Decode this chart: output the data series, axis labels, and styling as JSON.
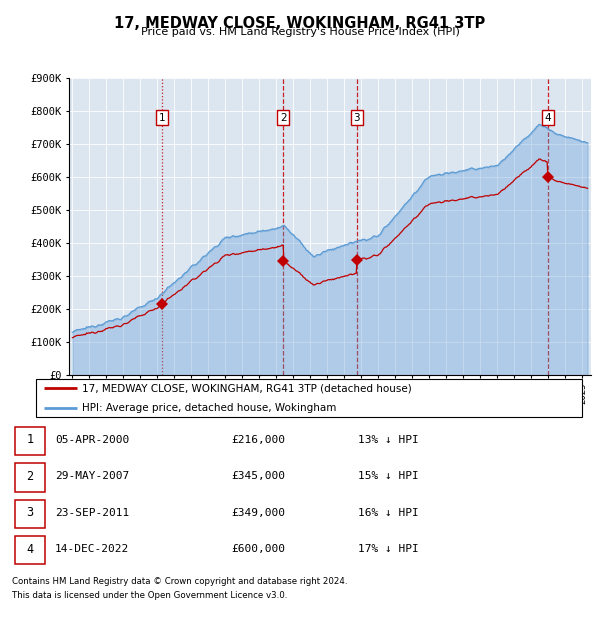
{
  "title": "17, MEDWAY CLOSE, WOKINGHAM, RG41 3TP",
  "subtitle": "Price paid vs. HM Land Registry's House Price Index (HPI)",
  "sales": [
    {
      "date": 2000.27,
      "price": 216000,
      "label": "1",
      "hpi_pct": "13% ↓ HPI",
      "date_str": "05-APR-2000",
      "price_str": "£216,000"
    },
    {
      "date": 2007.41,
      "price": 345000,
      "label": "2",
      "hpi_pct": "15% ↓ HPI",
      "date_str": "29-MAY-2007",
      "price_str": "£345,000"
    },
    {
      "date": 2011.73,
      "price": 349000,
      "label": "3",
      "hpi_pct": "16% ↓ HPI",
      "date_str": "23-SEP-2011",
      "price_str": "£349,000"
    },
    {
      "date": 2022.95,
      "price": 600000,
      "label": "4",
      "hpi_pct": "17% ↓ HPI",
      "date_str": "14-DEC-2022",
      "price_str": "£600,000"
    }
  ],
  "ylim": [
    0,
    900000
  ],
  "xlim": [
    1994.8,
    2025.5
  ],
  "yticks": [
    0,
    100000,
    200000,
    300000,
    400000,
    500000,
    600000,
    700000,
    800000,
    900000
  ],
  "ytick_labels": [
    "£0",
    "£100K",
    "£200K",
    "£300K",
    "£400K",
    "£500K",
    "£600K",
    "£700K",
    "£800K",
    "£900K"
  ],
  "hpi_color": "#5b9bd5",
  "price_color": "#c00000",
  "bg_color": "#dce6f1",
  "legend_label_red": "17, MEDWAY CLOSE, WOKINGHAM, RG41 3TP (detached house)",
  "legend_label_blue": "HPI: Average price, detached house, Wokingham",
  "footer1": "Contains HM Land Registry data © Crown copyright and database right 2024.",
  "footer2": "This data is licensed under the Open Government Licence v3.0."
}
